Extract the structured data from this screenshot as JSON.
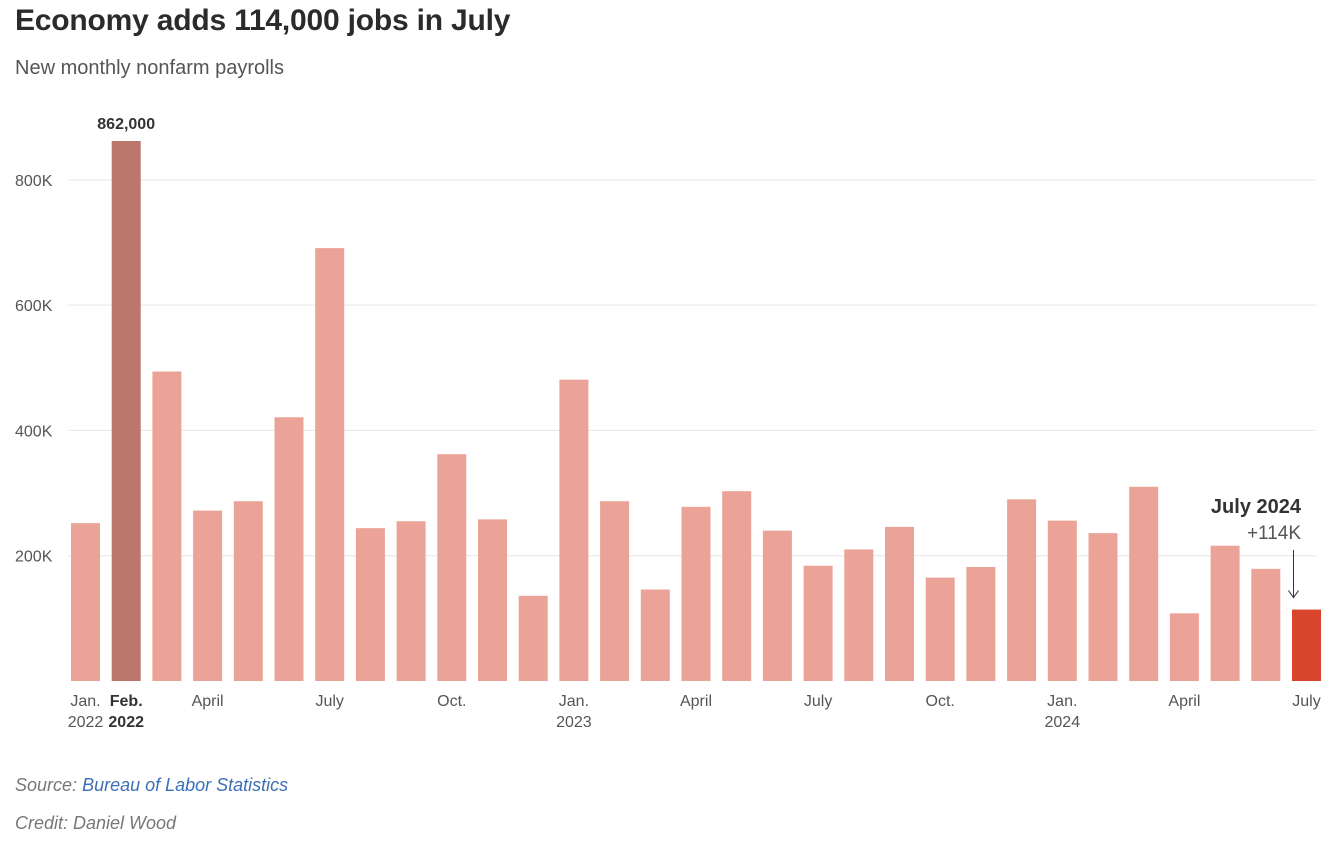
{
  "header": {
    "title": "Economy adds 114,000 jobs in July",
    "subtitle": "New monthly nonfarm payrolls"
  },
  "footer": {
    "source_label": "Source:",
    "source_link": "Bureau of Labor Statistics",
    "credit": "Credit: Daniel Wood"
  },
  "colors": {
    "bar": "#eaa396",
    "bar_peak": "#bb776c",
    "bar_latest": "#d9442d",
    "grid": "#e6e6e6",
    "axis_text": "#555555"
  },
  "chart_data": {
    "type": "bar",
    "title": "Economy adds 114,000 jobs in July",
    "subtitle": "New monthly nonfarm payrolls",
    "ylim": [
      0,
      862000
    ],
    "yticks": [
      200000,
      400000,
      600000,
      800000
    ],
    "ytick_labels": [
      "200K",
      "400K",
      "600K",
      "800K"
    ],
    "grid": true,
    "categories": [
      "Jan 2022",
      "Feb 2022",
      "Mar 2022",
      "Apr 2022",
      "May 2022",
      "Jun 2022",
      "Jul 2022",
      "Aug 2022",
      "Sep 2022",
      "Oct 2022",
      "Nov 2022",
      "Dec 2022",
      "Jan 2023",
      "Feb 2023",
      "Mar 2023",
      "Apr 2023",
      "May 2023",
      "Jun 2023",
      "Jul 2023",
      "Aug 2023",
      "Sep 2023",
      "Oct 2023",
      "Nov 2023",
      "Dec 2023",
      "Jan 2024",
      "Feb 2024",
      "Mar 2024",
      "Apr 2024",
      "May 2024",
      "Jun 2024",
      "Jul 2024"
    ],
    "values": [
      252000,
      862000,
      494000,
      272000,
      287000,
      421000,
      691000,
      244000,
      255000,
      362000,
      258000,
      136000,
      481000,
      287000,
      146000,
      278000,
      303000,
      240000,
      184000,
      210000,
      246000,
      165000,
      182000,
      290000,
      256000,
      236000,
      310000,
      108000,
      216000,
      179000,
      114000
    ],
    "highlight_peak_index": 1,
    "highlight_latest_index": 30,
    "x_tick_labels": [
      {
        "index": 0,
        "line1": "Jan.",
        "line2": "2022",
        "bold": false
      },
      {
        "index": 1,
        "line1": "Feb.",
        "line2": "2022",
        "bold": true
      },
      {
        "index": 3,
        "line1": "April",
        "line2": "",
        "bold": false
      },
      {
        "index": 6,
        "line1": "July",
        "line2": "",
        "bold": false
      },
      {
        "index": 9,
        "line1": "Oct.",
        "line2": "",
        "bold": false
      },
      {
        "index": 12,
        "line1": "Jan.",
        "line2": "2023",
        "bold": false
      },
      {
        "index": 15,
        "line1": "April",
        "line2": "",
        "bold": false
      },
      {
        "index": 18,
        "line1": "July",
        "line2": "",
        "bold": false
      },
      {
        "index": 21,
        "line1": "Oct.",
        "line2": "",
        "bold": false
      },
      {
        "index": 24,
        "line1": "Jan.",
        "line2": "2024",
        "bold": false
      },
      {
        "index": 27,
        "line1": "April",
        "line2": "",
        "bold": false
      },
      {
        "index": 30,
        "line1": "July",
        "line2": "",
        "bold": false
      }
    ],
    "annotations": {
      "peak_label": "862,000",
      "latest_title": "July 2024",
      "latest_value": "+114K"
    }
  }
}
